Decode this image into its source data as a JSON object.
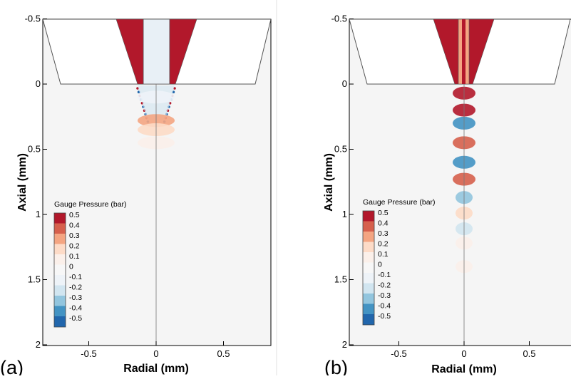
{
  "chart_data": [
    {
      "type": "heatmap",
      "panel_label": "(a)",
      "xlabel": "Radial (mm)",
      "ylabel": "Axial (mm)",
      "xlim": [
        -0.9,
        0.9
      ],
      "ylim": [
        2,
        -0.5
      ],
      "x_ticks": [
        "-0.5",
        "0",
        "0.5"
      ],
      "y_ticks": [
        "-0.5",
        "0",
        "0.5",
        "1",
        "1.5",
        "2"
      ],
      "y_tick_values": [
        -0.5,
        0,
        0.5,
        1,
        1.5,
        2
      ],
      "x_tick_values": [
        -0.5,
        0,
        0.5
      ],
      "legend": {
        "title": "Gauge Pressure (bar)",
        "levels": [
          "0.5",
          "0.4",
          "0.3",
          "0.2",
          "0.1",
          "0",
          "-0.1",
          "-0.2",
          "-0.3",
          "-0.4",
          "-0.5"
        ],
        "colors": [
          "#b2182b",
          "#d6604d",
          "#f4a582",
          "#fddbc7",
          "#fbf0ea",
          "#f7f7f7",
          "#eef3f8",
          "#d1e5f0",
          "#92c5de",
          "#4393c3",
          "#2166ac"
        ]
      },
      "blobs": [
        {
          "x": 0,
          "y": 0.1,
          "value": -0.1
        },
        {
          "x": 0,
          "y": 0.28,
          "value": 0.3
        },
        {
          "x": 0,
          "y": 0.35,
          "value": 0.2
        },
        {
          "x": 0,
          "y": 0.45,
          "value": 0.1
        }
      ]
    },
    {
      "type": "heatmap",
      "panel_label": "(b)",
      "xlabel": "Radial (mm)",
      "ylabel": "Axial (mm)",
      "xlim": [
        -0.9,
        0.9
      ],
      "ylim": [
        2,
        -0.5
      ],
      "x_ticks": [
        "-0.5",
        "0",
        "0.5"
      ],
      "y_ticks": [
        "-0.5",
        "0",
        "0.5",
        "1",
        "1.5",
        "2"
      ],
      "y_tick_values": [
        -0.5,
        0,
        0.5,
        1,
        1.5,
        2
      ],
      "x_tick_values": [
        -0.5,
        0,
        0.5
      ],
      "legend": {
        "title": "Gauge Pressure (bar)",
        "levels": [
          "0.5",
          "0.4",
          "0.3",
          "0.2",
          "0.1",
          "0",
          "-0.1",
          "-0.2",
          "-0.3",
          "-0.4",
          "-0.5"
        ],
        "colors": [
          "#b2182b",
          "#d6604d",
          "#f4a582",
          "#fddbc7",
          "#fbf0ea",
          "#f7f7f7",
          "#eef3f8",
          "#d1e5f0",
          "#92c5de",
          "#4393c3",
          "#2166ac"
        ]
      },
      "blobs": [
        {
          "x": 0,
          "y": 0.07,
          "value": 0.5
        },
        {
          "x": 0,
          "y": 0.2,
          "value": 0.5
        },
        {
          "x": 0,
          "y": 0.3,
          "value": -0.4
        },
        {
          "x": 0,
          "y": 0.45,
          "value": 0.4
        },
        {
          "x": 0,
          "y": 0.6,
          "value": -0.4
        },
        {
          "x": 0,
          "y": 0.73,
          "value": 0.4
        },
        {
          "x": 0,
          "y": 0.87,
          "value": -0.3
        },
        {
          "x": 0,
          "y": 0.99,
          "value": 0.2
        },
        {
          "x": 0,
          "y": 1.11,
          "value": -0.2
        },
        {
          "x": 0,
          "y": 1.22,
          "value": 0.1
        },
        {
          "x": 0,
          "y": 1.4,
          "value": 0.1
        }
      ]
    }
  ]
}
